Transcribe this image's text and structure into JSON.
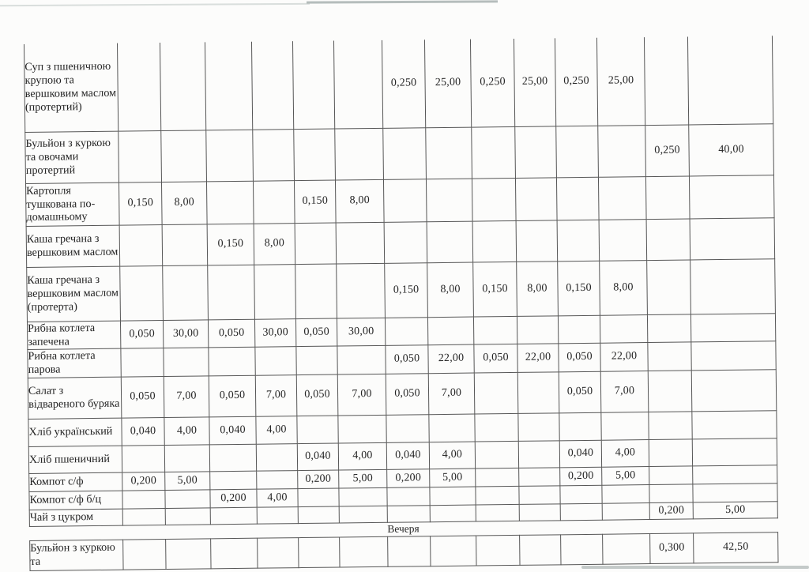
{
  "page": {
    "section_label": "Вечеря"
  },
  "table": {
    "rows": [
      {
        "name": "Суп з пшеничною крупою та вершковим маслом (протертий)",
        "cells": [
          "",
          "",
          "",
          "",
          "",
          "",
          "0,250",
          "25,00",
          "0,250",
          "25,00",
          "0,250",
          "25,00",
          "",
          ""
        ]
      },
      {
        "name": "Бульйон з куркою та овочами протертий",
        "cells": [
          "",
          "",
          "",
          "",
          "",
          "",
          "",
          "",
          "",
          "",
          "",
          "",
          "0,250",
          "40,00"
        ]
      },
      {
        "name": "Картопля тушкована по-домашньому",
        "cells": [
          "0,150",
          "8,00",
          "",
          "",
          "0,150",
          "8,00",
          "",
          "",
          "",
          "",
          "",
          "",
          "",
          ""
        ]
      },
      {
        "name": "Каша гречана з вершковим маслом",
        "cells": [
          "",
          "",
          "0,150",
          "8,00",
          "",
          "",
          "",
          "",
          "",
          "",
          "",
          "",
          "",
          ""
        ]
      },
      {
        "name": "Каша гречана з вершковим маслом (протерта)",
        "cells": [
          "",
          "",
          "",
          "",
          "",
          "",
          "0,150",
          "8,00",
          "0,150",
          "8,00",
          "0,150",
          "8,00",
          "",
          ""
        ]
      },
      {
        "name": "Рибна котлета запечена",
        "cells": [
          "0,050",
          "30,00",
          "0,050",
          "30,00",
          "0,050",
          "30,00",
          "",
          "",
          "",
          "",
          "",
          "",
          "",
          ""
        ]
      },
      {
        "name": "Рибна котлета парова",
        "cells": [
          "",
          "",
          "",
          "",
          "",
          "",
          "0,050",
          "22,00",
          "0,050",
          "22,00",
          "0,050",
          "22,00",
          "",
          ""
        ]
      },
      {
        "name": "Салат з відвареного буряка",
        "cells": [
          "0,050",
          "7,00",
          "0,050",
          "7,00",
          "0,050",
          "7,00",
          "0,050",
          "7,00",
          "",
          "",
          "0,050",
          "7,00",
          "",
          ""
        ]
      },
      {
        "name": "Хліб український",
        "cells": [
          "0,040",
          "4,00",
          "0,040",
          "4,00",
          "",
          "",
          "",
          "",
          "",
          "",
          "",
          "",
          "",
          ""
        ]
      },
      {
        "name": "Хліб пшеничний",
        "cells": [
          "",
          "",
          "",
          "",
          "0,040",
          "4,00",
          "0,040",
          "4,00",
          "",
          "",
          "0,040",
          "4,00",
          "",
          ""
        ]
      },
      {
        "name": "Компот с/ф",
        "cells": [
          "0,200",
          "5,00",
          "",
          "",
          "0,200",
          "5,00",
          "0,200",
          "5,00",
          "",
          "",
          "0,200",
          "5,00",
          "",
          ""
        ]
      },
      {
        "name": "Компот с/ф б/ц",
        "cells": [
          "",
          "",
          "0,200",
          "4,00",
          "",
          "",
          "",
          "",
          "",
          "",
          "",
          "",
          "",
          ""
        ]
      },
      {
        "name": "Чай з цукром",
        "cells": [
          "",
          "",
          "",
          "",
          "",
          "",
          "",
          "",
          "",
          "",
          "",
          "",
          "0,200",
          "5,00"
        ]
      }
    ],
    "dinner_rows": [
      {
        "name": "Бульйон з куркою та",
        "cells": [
          "",
          "",
          "",
          "",
          "",
          "",
          "",
          "",
          "",
          "",
          "",
          "",
          "0,300",
          "42,50"
        ]
      }
    ]
  }
}
